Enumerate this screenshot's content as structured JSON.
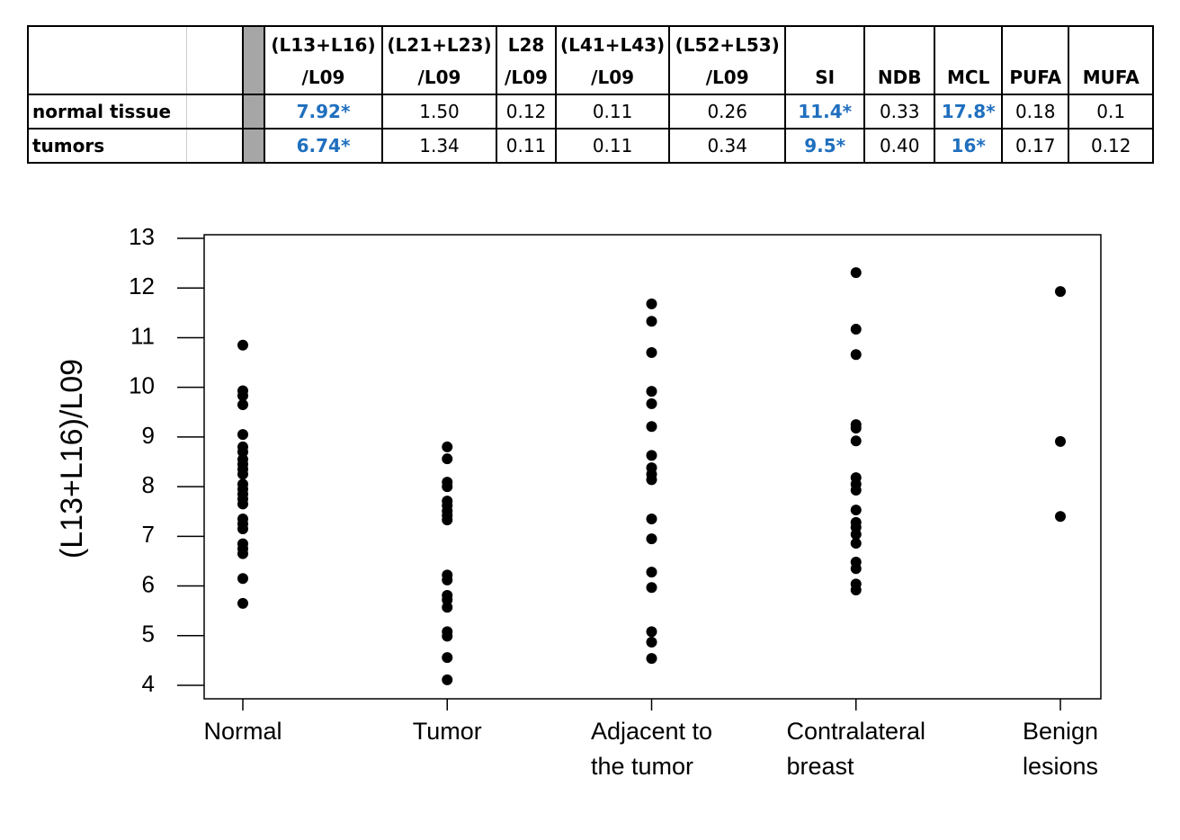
{
  "table": {
    "headers": [
      [
        "(L13+L16)",
        "/L09"
      ],
      [
        "(L21+L23)",
        "/L09"
      ],
      [
        "L28",
        "/L09"
      ],
      [
        "(L41+L43)",
        "/L09"
      ],
      [
        "(L52+L53)",
        "/L09"
      ],
      [
        "SI"
      ],
      [
        "NDB"
      ],
      [
        "MCL"
      ],
      [
        "PUFA"
      ],
      [
        "MUFA"
      ]
    ],
    "rows": [
      {
        "label": "normal tissue",
        "cells": [
          "7.92*",
          "1.50",
          "0.12",
          "0.11",
          "0.26",
          "11.4*",
          "0.33",
          "17.8*",
          "0.18",
          "0.1"
        ]
      },
      {
        "label": "tumors",
        "cells": [
          "6.74*",
          "1.34",
          "0.11",
          "0.11",
          "0.34",
          "9.5*",
          "0.40",
          "16*",
          "0.17",
          "0.12"
        ]
      }
    ],
    "highlight_columns": [
      0,
      5,
      7
    ],
    "highlight_color": "#1f6fbf"
  },
  "chart_data": {
    "type": "strip",
    "y_label": "(L13+L16)/L09",
    "categories": [
      "Normal",
      "Tumor",
      "Adjacent to\nthe tumor",
      "Contralateral\nbreast",
      "Benign\nlesions"
    ],
    "values": [
      [
        10.85,
        9.93,
        9.83,
        9.65,
        9.05,
        8.8,
        8.7,
        8.55,
        8.45,
        8.35,
        8.25,
        8.05,
        7.95,
        7.85,
        7.75,
        7.65,
        7.35,
        7.25,
        7.15,
        6.85,
        6.75,
        6.65,
        6.15,
        5.65
      ],
      [
        8.8,
        8.56,
        8.09,
        8.0,
        7.71,
        7.62,
        7.51,
        7.42,
        7.33,
        6.22,
        6.12,
        5.81,
        5.72,
        5.57,
        5.08,
        4.99,
        4.56,
        4.11
      ],
      [
        11.68,
        11.33,
        10.7,
        9.92,
        9.67,
        9.21,
        8.63,
        8.38,
        8.25,
        8.14,
        7.35,
        6.95,
        6.28,
        5.97,
        5.08,
        4.87,
        4.54
      ],
      [
        12.31,
        11.17,
        10.66,
        9.25,
        9.18,
        8.92,
        8.18,
        8.05,
        7.93,
        7.53,
        7.28,
        7.18,
        7.04,
        6.86,
        6.48,
        6.35,
        6.04,
        5.92
      ],
      [
        11.93,
        8.91,
        7.4
      ]
    ],
    "color": "#000000",
    "ylim": [
      4,
      13
    ],
    "yticks": [
      4,
      5,
      6,
      7,
      8,
      9,
      10,
      11,
      12,
      13
    ]
  }
}
